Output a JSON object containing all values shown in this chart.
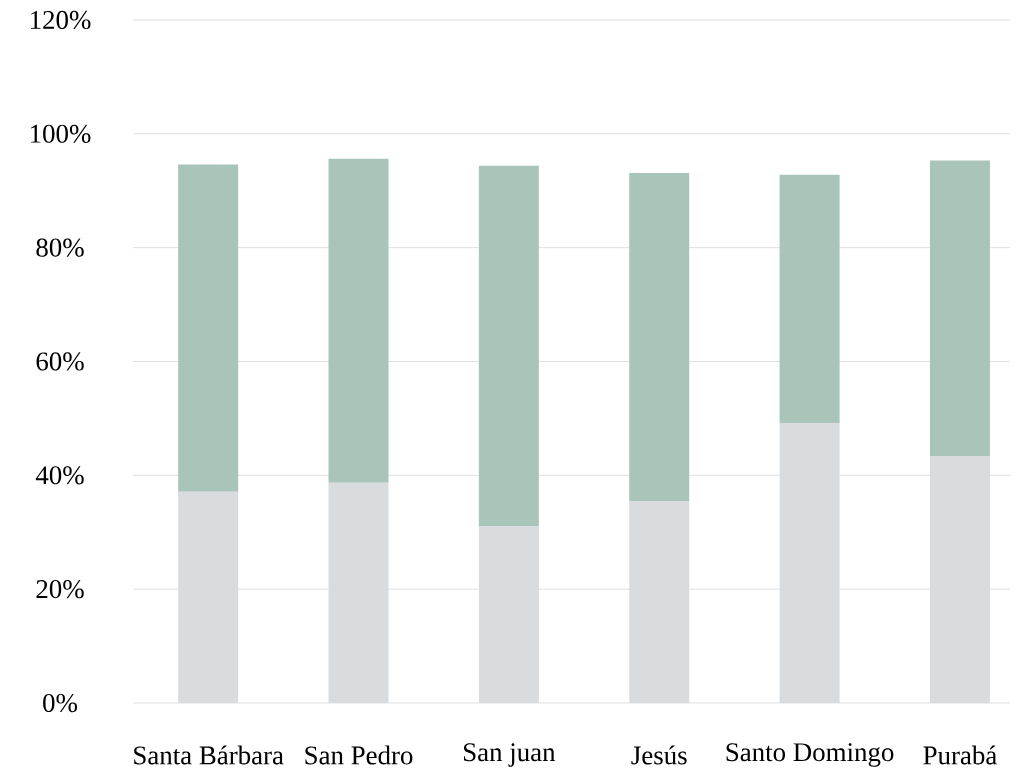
{
  "chart_data": {
    "type": "bar",
    "stacked": true,
    "categories": [
      "Santa Bárbara",
      "San Pedro",
      "San juan",
      "Jesús",
      "Santo Domingo",
      "Purabá"
    ],
    "series": [
      {
        "color": "#d9dcdf",
        "values": [
          37.1,
          38.7,
          31.1,
          35.5,
          49.2,
          43.4
        ]
      },
      {
        "color": "#a9c4b9",
        "values": [
          57.5,
          56.9,
          63.3,
          57.6,
          43.6,
          51.9
        ]
      }
    ],
    "ylim": [
      0,
      120
    ],
    "yticks": [
      {
        "value": 0,
        "label": "0%"
      },
      {
        "value": 20,
        "label": "20%"
      },
      {
        "value": 40,
        "label": "40%"
      },
      {
        "value": 60,
        "label": "60%"
      },
      {
        "value": 80,
        "label": "80%"
      },
      {
        "value": 100,
        "label": "100%"
      },
      {
        "value": 120,
        "label": "120%"
      }
    ],
    "grid": "y"
  }
}
